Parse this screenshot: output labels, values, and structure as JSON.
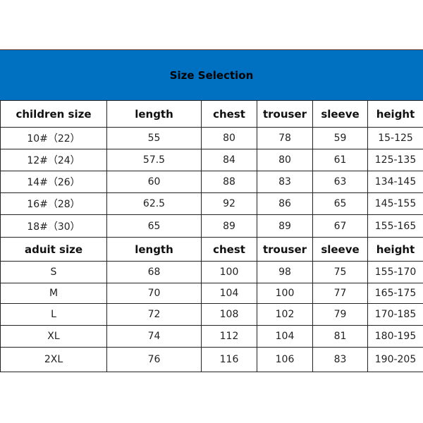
{
  "title": "Size Selection",
  "banner_color": "#0070C0",
  "sections": [
    {
      "headers": [
        "children size",
        "length",
        "chest",
        "trouser",
        "sleeve",
        "height"
      ],
      "rows": [
        [
          "10#（22）",
          "55",
          "80",
          "78",
          "59",
          "15-125"
        ],
        [
          "12#（24）",
          "57.5",
          "84",
          "80",
          "61",
          "125-135"
        ],
        [
          "14#（26）",
          "60",
          "88",
          "83",
          "63",
          "134-145"
        ],
        [
          "16#（28）",
          "62.5",
          "92",
          "86",
          "65",
          "145-155"
        ],
        [
          "18#（30）",
          "65",
          "89",
          "89",
          "67",
          "155-165"
        ]
      ]
    },
    {
      "headers": [
        "aduit size",
        "length",
        "chest",
        "trouser",
        "sleeve",
        "height"
      ],
      "rows": [
        [
          "S",
          "68",
          "100",
          "98",
          "75",
          "155-170"
        ],
        [
          "M",
          "70",
          "104",
          "100",
          "77",
          "165-175"
        ],
        [
          "L",
          "72",
          "108",
          "102",
          "79",
          "170-185"
        ],
        [
          "XL",
          "74",
          "112",
          "104",
          "81",
          "180-195"
        ],
        [
          "2XL",
          "76",
          "116",
          "106",
          "83",
          "190-205"
        ]
      ]
    }
  ]
}
